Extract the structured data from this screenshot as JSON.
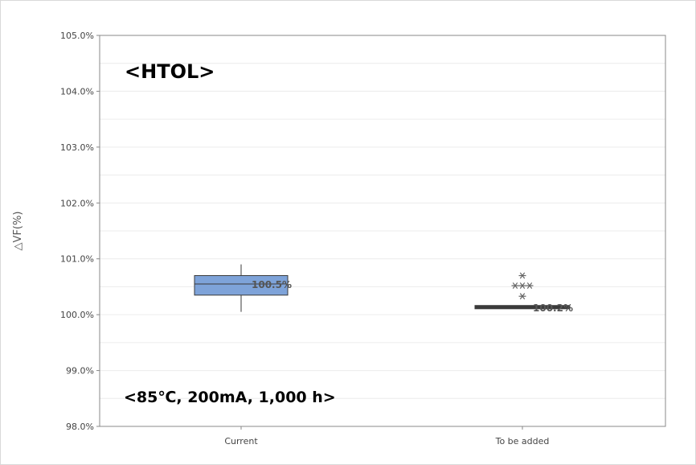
{
  "chart_data": {
    "type": "boxplot",
    "ylabel": "△VF(%)",
    "ylim": [
      98.0,
      105.0
    ],
    "yticks": [
      98.0,
      99.0,
      100.0,
      101.0,
      102.0,
      103.0,
      104.0,
      105.0
    ],
    "ytick_labels": [
      "98.0%",
      "99.0%",
      "100.0%",
      "101.0%",
      "102.0%",
      "103.0%",
      "104.0%",
      "105.0%"
    ],
    "grid": true,
    "categories": [
      "Current",
      "To be added"
    ],
    "boxes": [
      {
        "category": "Current",
        "whisker_low": 100.05,
        "q1": 100.35,
        "median": 100.55,
        "q3": 100.7,
        "whisker_high": 100.9,
        "label": "100.5%",
        "outliers": []
      },
      {
        "category": "To be added",
        "whisker_low": 100.12,
        "q1": 100.12,
        "median": 100.13,
        "q3": 100.15,
        "whisker_high": 100.15,
        "label": "100.2%",
        "outliers": [
          100.7,
          100.52,
          100.52,
          100.52,
          100.33
        ]
      }
    ],
    "annotations": [
      "<HTOL>",
      "<85℃, 200mA, 1,000 h>"
    ],
    "colors": {
      "box_fill": "#7ea3d9",
      "box_stroke": "#3a3a3a",
      "grid": "#ececec",
      "axis": "#888888",
      "outlier": "#666666"
    }
  }
}
